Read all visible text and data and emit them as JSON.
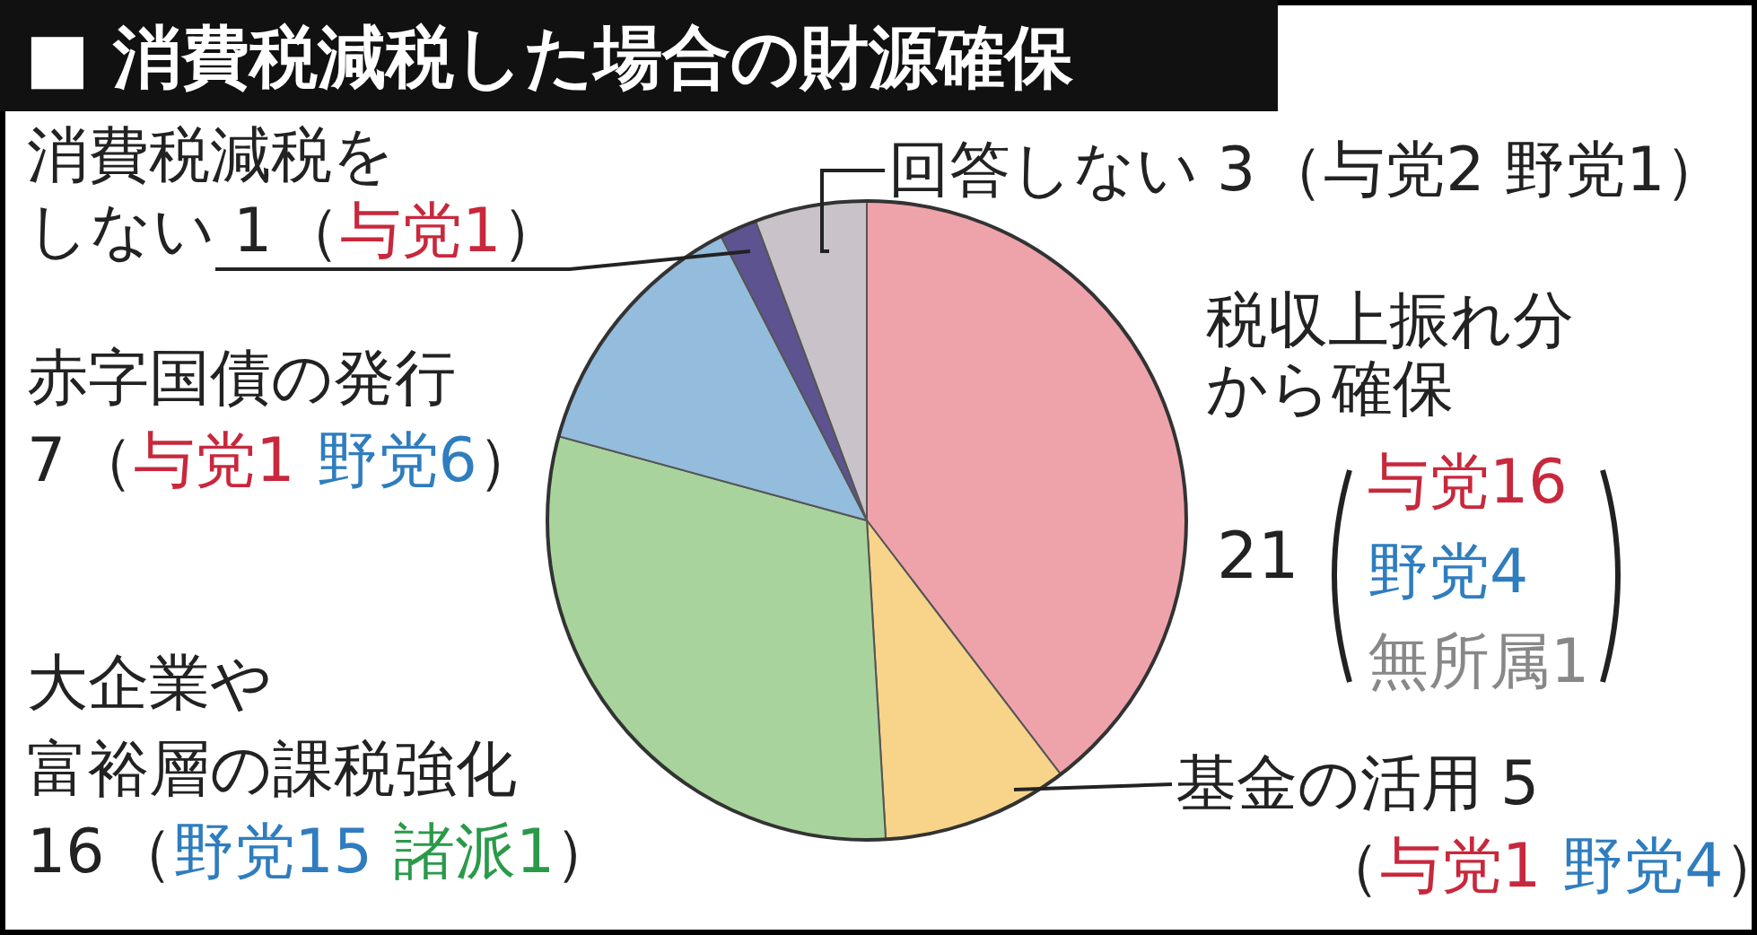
{
  "chart_data": {
    "type": "pie",
    "title": "■ 消費税減税した場合の財源確保",
    "categories": [
      "税収上振れ分から確保",
      "基金の活用",
      "大企業や富裕層の課税強化",
      "赤字国債の発行",
      "消費税減税をしない",
      "回答しない"
    ],
    "values": [
      21,
      5,
      16,
      7,
      1,
      3
    ],
    "value_labels": [
      "21",
      "5",
      "16",
      "7",
      "1",
      "3"
    ],
    "colors": [
      "#eea3ab",
      "#f7d48a",
      "#a9d39c",
      "#94bcdc",
      "#5c5390",
      "#c9c3c9"
    ],
    "annotations": [
      "（与党2 野党1）",
      "与党16",
      "野党4",
      "無所属1",
      "（与党1",
      "野党4）",
      "（野党15",
      "諸派1）",
      "（与党1",
      "野党6）",
      "（与党1）"
    ]
  }
}
